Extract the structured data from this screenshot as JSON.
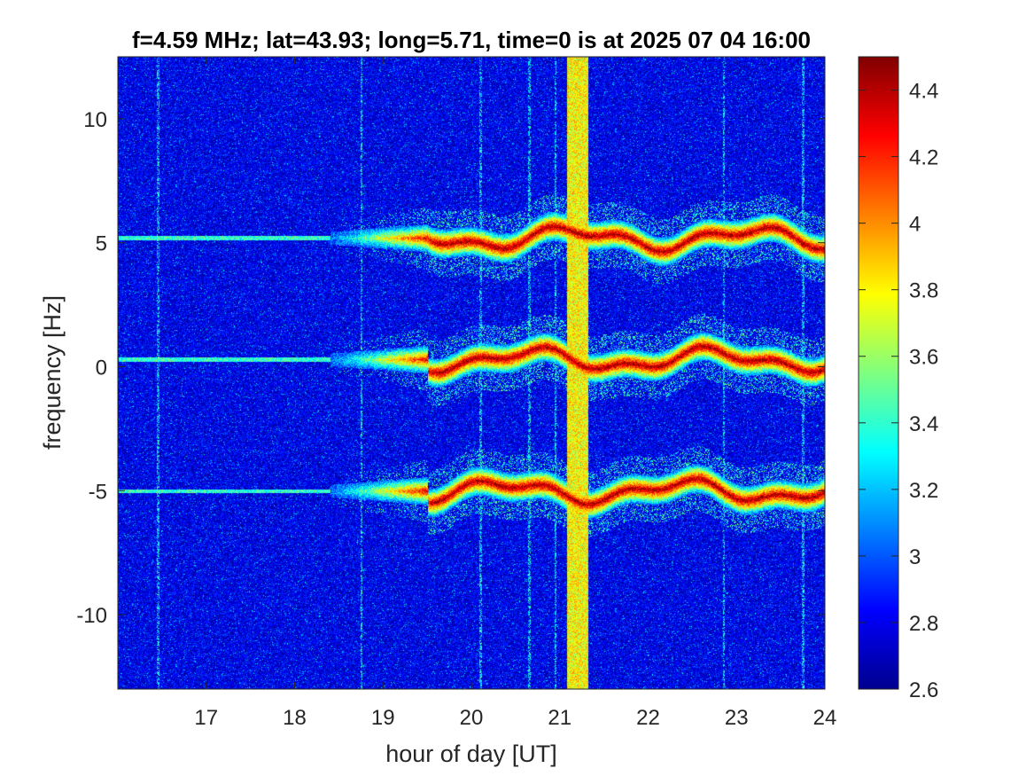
{
  "chart_data": {
    "type": "heatmap",
    "title": "f=4.59 MHz;  lat=43.93; long=5.71, time=0 is at 2025 07 04 16:00",
    "xlabel": "hour of day [UT]",
    "ylabel": "frequency [Hz]",
    "xlim": [
      16,
      24
    ],
    "ylim": [
      -13,
      12.5
    ],
    "x_ticks": [
      17,
      18,
      19,
      20,
      21,
      22,
      23,
      24
    ],
    "x_tick_labels": [
      "17",
      "18",
      "19",
      "20",
      "21",
      "22",
      "23",
      "24"
    ],
    "y_ticks": [
      -10,
      -5,
      0,
      5,
      10
    ],
    "y_tick_labels": [
      "-10",
      "-5",
      "0",
      "5",
      "10"
    ],
    "colorbar": {
      "colormap": "jet",
      "clim": [
        2.6,
        4.5
      ],
      "ticks": [
        2.6,
        2.8,
        3,
        3.2,
        3.4,
        3.6,
        3.8,
        4,
        4.2,
        4.4
      ],
      "tick_labels": [
        "2.6",
        "2.8",
        "3",
        "3.2",
        "3.4",
        "3.6",
        "3.8",
        "4",
        "4.2",
        "4.4"
      ]
    },
    "features": {
      "background_level": 2.8,
      "traces_center_hz": [
        5.2,
        0.3,
        -5.0
      ],
      "traces_time_range": [
        18.5,
        24
      ],
      "trace_peak_level": 4.45,
      "vertical_band_hour": 21.2,
      "vertical_band_level": 3.7
    }
  }
}
